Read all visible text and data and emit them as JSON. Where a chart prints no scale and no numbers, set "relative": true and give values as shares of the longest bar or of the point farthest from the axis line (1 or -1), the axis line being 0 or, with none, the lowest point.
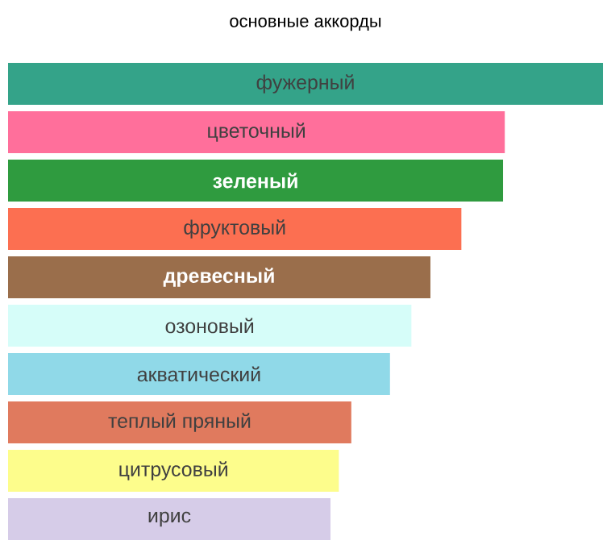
{
  "chart_data": {
    "type": "bar",
    "orientation": "horizontal",
    "relative": true,
    "title": "основные аккорды",
    "categories": [
      "фужерный",
      "цветочный",
      "зеленый",
      "фруктовый",
      "древесный",
      "озоновый",
      "акватический",
      "теплый пряный",
      "цитрусовый",
      "ирис"
    ],
    "values": [
      1.0,
      0.835,
      0.832,
      0.762,
      0.71,
      0.678,
      0.642,
      0.577,
      0.556,
      0.542
    ],
    "colors": [
      "#34a389",
      "#ff6f9b",
      "#2f9b3f",
      "#fc6f51",
      "#9a6e4b",
      "#d6fdf9",
      "#90d9e8",
      "#e07a5e",
      "#fdfd8c",
      "#d6cce8"
    ]
  }
}
